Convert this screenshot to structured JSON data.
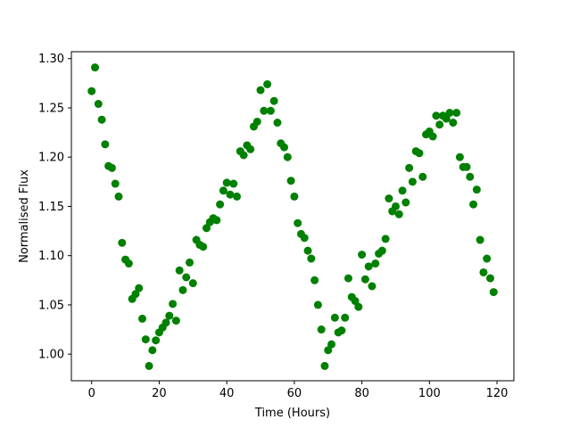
{
  "chart_data": {
    "type": "scatter",
    "title": "",
    "xlabel": "Time (Hours)",
    "ylabel": "Normalised Flux",
    "xlim": [
      -6,
      125
    ],
    "ylim": [
      0.973,
      1.307
    ],
    "xticks": [
      0,
      20,
      40,
      60,
      80,
      100,
      120
    ],
    "xtick_labels": [
      "0",
      "20",
      "40",
      "60",
      "80",
      "100",
      "120"
    ],
    "yticks": [
      1.0,
      1.05,
      1.1,
      1.15,
      1.2,
      1.25,
      1.3
    ],
    "ytick_labels": [
      "1.00",
      "1.05",
      "1.10",
      "1.15",
      "1.20",
      "1.25",
      "1.30"
    ],
    "grid": false,
    "marker_color": "#008000",
    "series": [
      {
        "x": [
          0,
          1,
          2,
          3,
          4,
          5,
          6,
          7,
          8,
          9,
          10,
          11,
          12,
          13,
          14,
          15,
          16,
          17,
          18,
          19,
          20,
          21,
          22,
          23,
          24,
          25,
          26,
          27,
          28,
          29,
          30,
          31,
          32,
          33,
          34,
          35,
          36,
          37,
          38,
          39,
          40,
          41,
          42,
          43,
          44,
          45,
          46,
          47,
          48,
          49,
          50,
          51,
          52,
          53,
          54,
          55,
          56,
          57,
          58,
          59,
          60,
          61,
          62,
          63,
          64,
          65,
          66,
          67,
          68,
          69,
          70,
          71,
          72,
          73,
          74,
          75,
          76,
          77,
          78,
          79,
          80,
          81,
          82,
          83,
          84,
          85,
          86,
          87,
          88,
          89,
          90,
          91,
          92,
          93,
          94,
          95,
          96,
          97,
          98,
          99,
          100,
          101,
          102,
          103,
          104,
          105,
          106,
          107,
          108,
          109,
          110,
          111,
          112,
          113,
          114,
          115,
          116,
          117,
          118,
          119
        ],
        "y": [
          1.267,
          1.291,
          1.254,
          1.238,
          1.213,
          1.191,
          1.189,
          1.173,
          1.16,
          1.113,
          1.096,
          1.092,
          1.056,
          1.061,
          1.067,
          1.036,
          1.015,
          0.988,
          1.004,
          1.014,
          1.022,
          1.027,
          1.032,
          1.039,
          1.051,
          1.034,
          1.085,
          1.065,
          1.078,
          1.093,
          1.072,
          1.116,
          1.111,
          1.109,
          1.128,
          1.134,
          1.138,
          1.136,
          1.152,
          1.166,
          1.174,
          1.162,
          1.173,
          1.16,
          1.206,
          1.202,
          1.212,
          1.208,
          1.231,
          1.236,
          1.268,
          1.247,
          1.274,
          1.247,
          1.257,
          1.235,
          1.214,
          1.21,
          1.2,
          1.176,
          1.16,
          1.133,
          1.122,
          1.118,
          1.105,
          1.097,
          1.075,
          1.05,
          1.025,
          0.988,
          1.004,
          1.01,
          1.037,
          1.022,
          1.024,
          1.037,
          1.077,
          1.058,
          1.054,
          1.048,
          1.101,
          1.076,
          1.089,
          1.069,
          1.092,
          1.102,
          1.105,
          1.117,
          1.158,
          1.145,
          1.15,
          1.142,
          1.166,
          1.154,
          1.189,
          1.175,
          1.206,
          1.204,
          1.18,
          1.223,
          1.226,
          1.221,
          1.242,
          1.233,
          1.242,
          1.239,
          1.245,
          1.235,
          1.245,
          1.2,
          1.19,
          1.19,
          1.18,
          1.152,
          1.167,
          1.116,
          1.083,
          1.097,
          1.077,
          1.063
        ]
      }
    ]
  }
}
